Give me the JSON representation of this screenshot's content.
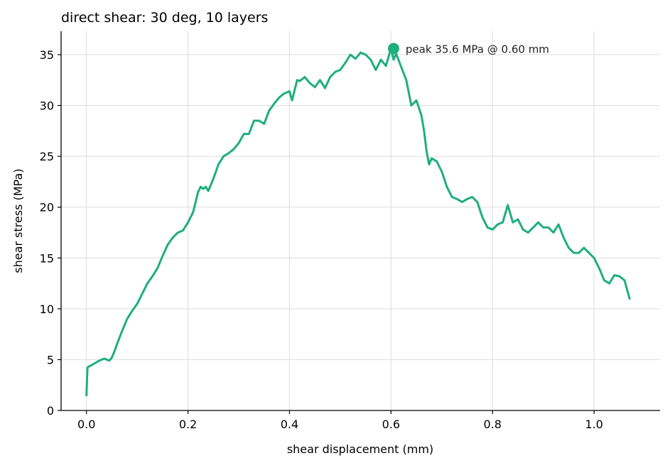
{
  "chart_data": {
    "type": "line",
    "title": "direct shear: 30 deg, 10 layers",
    "xlabel": "shear displacement (mm)",
    "ylabel": "shear stress (MPa)",
    "xlim": [
      -0.05,
      1.13
    ],
    "ylim": [
      0,
      37.3
    ],
    "xticks": [
      "0.0",
      "0.2",
      "0.4",
      "0.6",
      "0.8",
      "1.0"
    ],
    "yticks": [
      "0",
      "5",
      "10",
      "15",
      "20",
      "25",
      "30",
      "35"
    ],
    "grid": true,
    "line_color": "#1fae7d",
    "series": [
      {
        "x": [
          0.0,
          0.001,
          0.002,
          0.004,
          0.008,
          0.015,
          0.025,
          0.035,
          0.04,
          0.045,
          0.05,
          0.055,
          0.06,
          0.07,
          0.08,
          0.09,
          0.1,
          0.11,
          0.12,
          0.13,
          0.14,
          0.15,
          0.16,
          0.17,
          0.18,
          0.19,
          0.2,
          0.21,
          0.22,
          0.225,
          0.23,
          0.235,
          0.24,
          0.25,
          0.26,
          0.27,
          0.28,
          0.29,
          0.3,
          0.31,
          0.32,
          0.33,
          0.34,
          0.35,
          0.36,
          0.37,
          0.38,
          0.39,
          0.4,
          0.405,
          0.41,
          0.415,
          0.42,
          0.43,
          0.44,
          0.45,
          0.46,
          0.47,
          0.48,
          0.49,
          0.5,
          0.51,
          0.52,
          0.53,
          0.54,
          0.55,
          0.56,
          0.57,
          0.58,
          0.59,
          0.6,
          0.605,
          0.61,
          0.62,
          0.63,
          0.64,
          0.65,
          0.66,
          0.665,
          0.67,
          0.675,
          0.68,
          0.69,
          0.7,
          0.71,
          0.72,
          0.73,
          0.74,
          0.75,
          0.76,
          0.77,
          0.78,
          0.79,
          0.8,
          0.81,
          0.82,
          0.83,
          0.84,
          0.85,
          0.86,
          0.87,
          0.88,
          0.89,
          0.9,
          0.91,
          0.92,
          0.93,
          0.94,
          0.95,
          0.96,
          0.97,
          0.98,
          0.99,
          1.0,
          1.01,
          1.02,
          1.03,
          1.04,
          1.05,
          1.06,
          1.07
        ],
        "y": [
          1.5,
          3.0,
          4.2,
          4.3,
          4.4,
          4.6,
          4.9,
          5.1,
          5.0,
          4.9,
          5.2,
          5.8,
          6.5,
          7.8,
          9.0,
          9.8,
          10.5,
          11.5,
          12.5,
          13.2,
          14.0,
          15.2,
          16.3,
          17.0,
          17.5,
          17.7,
          18.5,
          19.5,
          21.5,
          22.0,
          21.8,
          22.0,
          21.6,
          22.8,
          24.2,
          25.0,
          25.3,
          25.7,
          26.3,
          27.2,
          27.2,
          28.5,
          28.5,
          28.2,
          29.5,
          30.2,
          30.8,
          31.2,
          31.4,
          30.5,
          31.5,
          32.5,
          32.4,
          32.8,
          32.2,
          31.8,
          32.5,
          31.7,
          32.8,
          33.3,
          33.5,
          34.2,
          35.0,
          34.6,
          35.2,
          35.0,
          34.5,
          33.5,
          34.5,
          33.9,
          35.6,
          34.5,
          35.1,
          33.8,
          32.5,
          30.0,
          30.5,
          29.0,
          27.5,
          25.5,
          24.2,
          24.8,
          24.5,
          23.5,
          22.0,
          21.0,
          20.8,
          20.5,
          20.8,
          21.0,
          20.5,
          19.0,
          18.0,
          17.8,
          18.3,
          18.5,
          20.2,
          18.5,
          18.8,
          17.8,
          17.5,
          18.0,
          18.5,
          18.0,
          18.0,
          17.5,
          18.3,
          17.0,
          16.0,
          15.5,
          15.5,
          16.0,
          15.5,
          15.0,
          14.0,
          12.8,
          12.5,
          13.3,
          13.2,
          12.8,
          11.0
        ]
      }
    ],
    "annotation": {
      "text": "peak 35.6 MPa @ 0.60 mm",
      "x": 0.605,
      "y": 35.6
    }
  }
}
